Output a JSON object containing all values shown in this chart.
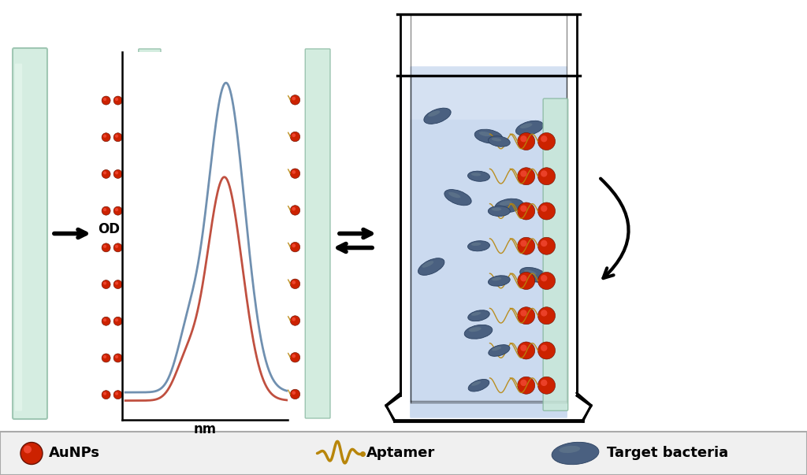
{
  "fig_width": 10.24,
  "fig_height": 6.03,
  "bg_color": "#ffffff",
  "aunp_color": "#cc2200",
  "aunp_hl_color": "#ff5544",
  "aunp_edge_color": "#661100",
  "glass_color": "#c8e8d8",
  "glass_edge_color": "#88b8a0",
  "aptamer_color": "#b8860b",
  "bacteria_color": "#4a6080",
  "bacteria_hl_color": "#6a8090",
  "bacteria_edge_color": "#2a4060",
  "liquid_color": "#c8d8ee",
  "legend_bg": "#f0f0f0",
  "legend_edge": "#aaaaaa",
  "plot_blue": "#7090b0",
  "plot_red": "#c05040",
  "plot_xlabel": "nm",
  "plot_ylabel": "OD",
  "aunp_label": "AuNPs",
  "aptamer_label": "Aptamer",
  "bacteria_label": "Target bacteria"
}
